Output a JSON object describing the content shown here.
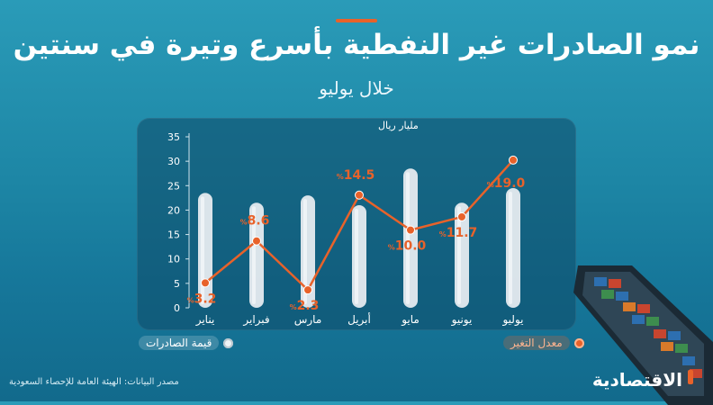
{
  "header": {
    "title": "نمو الصادرات غير النفطية بأسرع وتيرة في سنتين",
    "subtitle": "خلال يوليو"
  },
  "legend": {
    "value_label": "قيمة الصادرات",
    "change_label": "معدل التغير"
  },
  "footer": {
    "source": "مصدر البيانات: الهيئة العامة للإحصاء السعودية",
    "logo": "الاقتصادية"
  },
  "colors": {
    "accent": "#e8622a",
    "bar": "#e9eef2",
    "background": "#1d86a5"
  },
  "chart_data": {
    "type": "bar",
    "unit_label": "مليار ريال",
    "categories": [
      "يناير",
      "فبراير",
      "مارس",
      "أبريل",
      "مايو",
      "يونيو",
      "يوليو"
    ],
    "y_ticks": [
      0,
      5,
      10,
      15,
      20,
      25,
      30,
      35
    ],
    "ylim": [
      0,
      35
    ],
    "series": [
      {
        "name": "قيمة الصادرات",
        "type": "bar",
        "values": [
          23.5,
          21.5,
          23.0,
          21.0,
          28.5,
          21.5,
          24.5
        ]
      },
      {
        "name": "معدل التغير",
        "type": "line",
        "values": [
          3.2,
          8.6,
          2.3,
          14.5,
          10.0,
          11.7,
          19.0
        ],
        "labels": [
          "3.2",
          "8.6",
          "2.3",
          "14.5",
          "10.0",
          "11.7",
          "19.0"
        ],
        "ylim": [
          0,
          22
        ]
      }
    ]
  }
}
